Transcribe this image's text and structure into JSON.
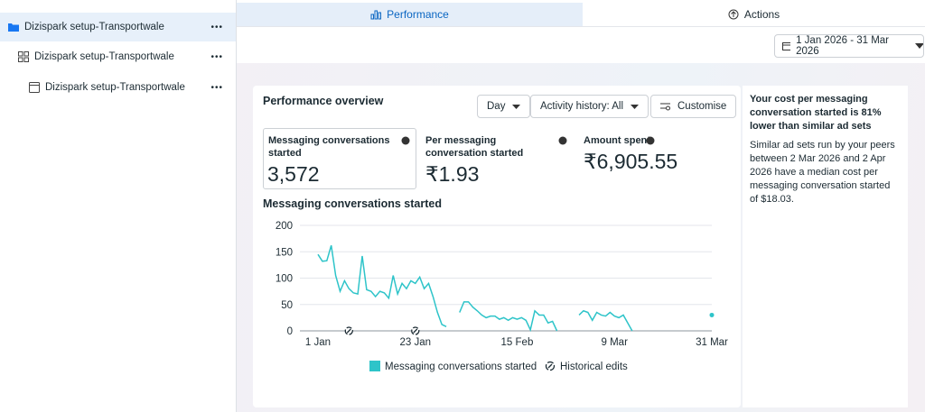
{
  "sidebar": {
    "items": [
      "Dizispark setup-Transportwale",
      "Dizispark setup-Transportwale",
      "Dizispark setup-Transportwale"
    ]
  },
  "tabs": [
    "Performance",
    "Actions"
  ],
  "date_range": "1 Jan 2026 - 31 Mar 2026",
  "overview": {
    "title": "Performance overview",
    "controls": [
      "Day",
      "Activity history: All",
      "Customise"
    ],
    "metrics": [
      {
        "label": "Messaging conversations started",
        "value": "3,572"
      },
      {
        "label": "Per messaging conversation started",
        "value": "₹1.93"
      },
      {
        "label": "Amount spent",
        "value": "₹6,905.55"
      }
    ]
  },
  "chart_data": {
    "type": "line",
    "title": "Messaging conversations started",
    "x": [
      0,
      1,
      2,
      3,
      4,
      5,
      6,
      7,
      8,
      9,
      10,
      11,
      12,
      13,
      14,
      15,
      16,
      17,
      18,
      19,
      20,
      21,
      22,
      23,
      24,
      25,
      26,
      27,
      28,
      29,
      30,
      31,
      32,
      33,
      34,
      35,
      36,
      37,
      38,
      39,
      40,
      41,
      42,
      43,
      44,
      45,
      46,
      47,
      48,
      49,
      50,
      51,
      52,
      53,
      54,
      55,
      56,
      57,
      58,
      59,
      60,
      61,
      62,
      63,
      64,
      65,
      66,
      67,
      68,
      69,
      70,
      71,
      72,
      73,
      74,
      75,
      76,
      77,
      78,
      79,
      80,
      81,
      82,
      83,
      84,
      85,
      86,
      87,
      88,
      89
    ],
    "series": [
      {
        "name": "Messaging conversations started",
        "color": "#2ec4c9",
        "values": [
          145,
          132,
          133,
          162,
          105,
          75,
          95,
          80,
          72,
          70,
          142,
          78,
          75,
          65,
          75,
          72,
          62,
          105,
          70,
          90,
          80,
          95,
          90,
          102,
          80,
          90,
          65,
          35,
          12,
          8,
          null,
          null,
          35,
          55,
          55,
          45,
          38,
          30,
          25,
          28,
          28,
          22,
          25,
          20,
          25,
          22,
          25,
          20,
          2,
          38,
          30,
          30,
          15,
          18,
          0,
          null,
          null,
          null,
          null,
          30,
          38,
          35,
          20,
          35,
          30,
          28,
          35,
          28,
          25,
          30,
          15,
          0,
          null,
          null,
          null,
          null,
          null,
          null,
          null,
          null,
          null,
          null,
          null,
          null,
          null,
          null,
          null,
          null,
          null,
          30
        ]
      }
    ],
    "xlim": [
      0,
      89
    ],
    "xticks": [
      {
        "value": 0,
        "label": "1 Jan"
      },
      {
        "value": 22,
        "label": "23 Jan"
      },
      {
        "value": 45,
        "label": "15 Feb"
      },
      {
        "value": 67,
        "label": "9 Mar"
      },
      {
        "value": 89,
        "label": "31 Mar"
      }
    ],
    "ylim": [
      0,
      200
    ],
    "yticks": [
      0,
      50,
      100,
      150,
      200
    ],
    "grid": true,
    "edits_label": "Historical edits",
    "edits_x": [
      7,
      22
    ]
  },
  "insight": {
    "title": "Your cost per messaging conversation started is 81% lower than similar ad sets",
    "body": "Similar ad sets run by your peers between 2 Mar 2026 and 2 Apr 2026 have a median cost per messaging conversation started of $18.03."
  }
}
